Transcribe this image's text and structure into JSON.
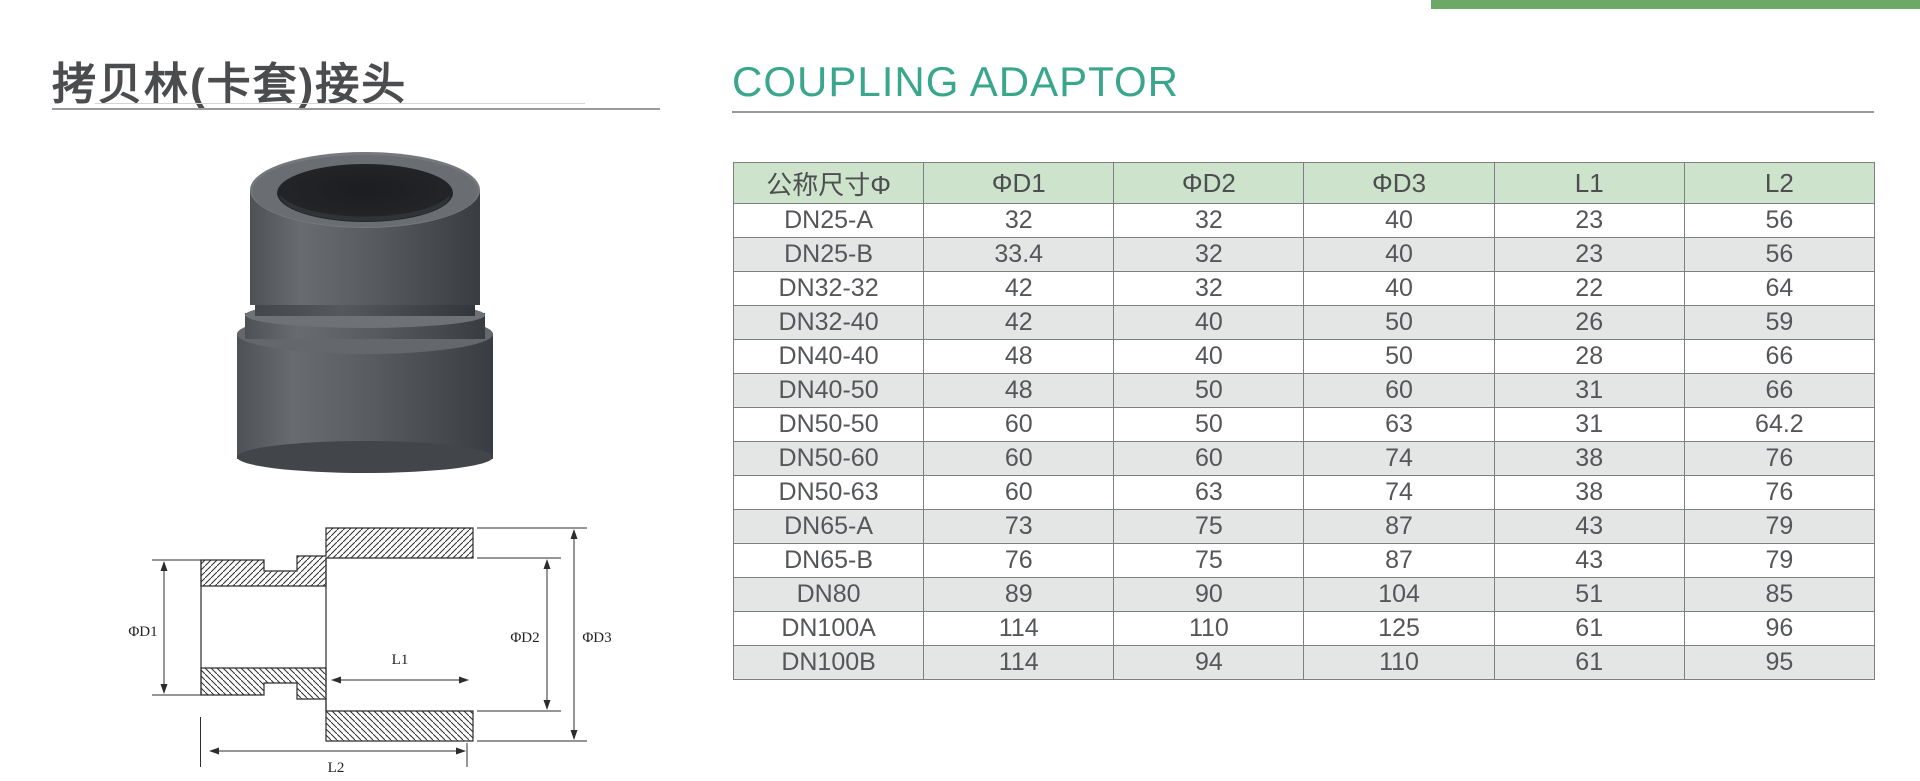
{
  "header": {
    "title_zh": "拷贝林(卡套)接头",
    "title_en": "COUPLING ADAPTOR"
  },
  "accent": {
    "top_bar_color": "#6ca967",
    "title_en_color": "#3aa68c",
    "table_header_bg": "#cde3cb",
    "table_alt_row_bg": "#e4e5e5"
  },
  "drawing": {
    "label_d1": "ΦD1",
    "label_d2": "ΦD2",
    "label_d3": "ΦD3",
    "label_l1": "L1",
    "label_l2": "L2"
  },
  "table": {
    "columns": [
      "公称尺寸Φ",
      "ΦD1",
      "ΦD2",
      "ΦD3",
      "L1",
      "L2"
    ],
    "rows": [
      [
        "DN25-A",
        "32",
        "32",
        "40",
        "23",
        "56"
      ],
      [
        "DN25-B",
        "33.4",
        "32",
        "40",
        "23",
        "56"
      ],
      [
        "DN32-32",
        "42",
        "32",
        "40",
        "22",
        "64"
      ],
      [
        "DN32-40",
        "42",
        "40",
        "50",
        "26",
        "59"
      ],
      [
        "DN40-40",
        "48",
        "40",
        "50",
        "28",
        "66"
      ],
      [
        "DN40-50",
        "48",
        "50",
        "60",
        "31",
        "66"
      ],
      [
        "DN50-50",
        "60",
        "50",
        "63",
        "31",
        "64.2"
      ],
      [
        "DN50-60",
        "60",
        "60",
        "74",
        "38",
        "76"
      ],
      [
        "DN50-63",
        "60",
        "63",
        "74",
        "38",
        "76"
      ],
      [
        "DN65-A",
        "73",
        "75",
        "87",
        "43",
        "79"
      ],
      [
        "DN65-B",
        "76",
        "75",
        "87",
        "43",
        "79"
      ],
      [
        "DN80",
        "89",
        "90",
        "104",
        "51",
        "85"
      ],
      [
        "DN100A",
        "114",
        "110",
        "125",
        "61",
        "96"
      ],
      [
        "DN100B",
        "114",
        "94",
        "110",
        "61",
        "95"
      ]
    ]
  }
}
